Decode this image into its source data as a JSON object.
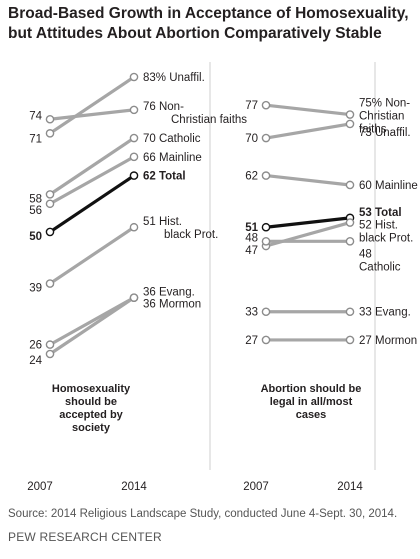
{
  "title_line1": "Broad-Based Growth in Acceptance of Homosexuality,",
  "title_line2": "but Attitudes About Abortion Comparatively Stable",
  "source": "Source: 2014 Religious Landscape Study, conducted June 4-Sept. 30, 2014.",
  "organization": "PEW RESEARCH CENTER",
  "colors": {
    "line": "#a6a6a6",
    "highlight": "#111111",
    "text": "#231f20"
  },
  "chart_data": [
    {
      "type": "line",
      "title": "Homosexuality should be accepted by society",
      "caption_lines": [
        "Homosexuality",
        "should be",
        "accepted by",
        "society"
      ],
      "x": [
        "2007",
        "2014"
      ],
      "ylim": [
        20,
        90
      ],
      "series": [
        {
          "name": "Unaffil.",
          "label": "83% Unaffil.",
          "start_label": "71",
          "values": [
            71,
            83
          ]
        },
        {
          "name": "Non-Christian faiths",
          "label": "76 Non- Christian faiths",
          "label_lines": [
            "Non-",
            "Christian faiths"
          ],
          "start_label": "74",
          "values": [
            74,
            76
          ]
        },
        {
          "name": "Catholic",
          "label": "70 Catholic",
          "start_label": "58",
          "values": [
            58,
            70
          ]
        },
        {
          "name": "Mainline",
          "label": "66 Mainline",
          "start_label": "56",
          "values": [
            56,
            66
          ]
        },
        {
          "name": "Total",
          "label": "62 Total",
          "start_label": "50",
          "values": [
            50,
            62
          ],
          "highlight": true
        },
        {
          "name": "Hist. black Prot.",
          "label": "51 Hist. black Prot.",
          "label_lines": [
            "Hist.",
            "black Prot."
          ],
          "start_label": "39",
          "values": [
            39,
            51
          ]
        },
        {
          "name": "Evang.",
          "label": "36 Evang.",
          "start_label": "26",
          "values": [
            26,
            36
          ]
        },
        {
          "name": "Mormon",
          "label": "36 Mormon",
          "start_label": "24",
          "values": [
            24,
            36
          ]
        }
      ]
    },
    {
      "type": "line",
      "title": "Abortion should be legal in all/most cases",
      "caption_lines": [
        "Abortion should be",
        "legal in all/most",
        "cases"
      ],
      "x": [
        "2007",
        "2014"
      ],
      "ylim": [
        20,
        90
      ],
      "series": [
        {
          "name": "Non-Christian faiths",
          "label": "75% Non-Christian faiths",
          "label_lines": [
            "75% Non-",
            "Christian",
            "faiths"
          ],
          "start_label": "77",
          "values": [
            77,
            75
          ]
        },
        {
          "name": "Unaffil.",
          "label": "73 Unaffil.",
          "start_label": "70",
          "values": [
            70,
            73
          ]
        },
        {
          "name": "Mainline",
          "label": "60 Mainline",
          "start_label": "62",
          "values": [
            62,
            60
          ]
        },
        {
          "name": "Total",
          "label": "53 Total",
          "start_label": "51",
          "values": [
            51,
            53
          ],
          "highlight": true
        },
        {
          "name": "Hist. black Prot.",
          "label": "52 Hist. black Prot.",
          "label_lines": [
            "52 Hist.",
            "black Prot."
          ],
          "start_label": "47",
          "values": [
            47,
            52
          ]
        },
        {
          "name": "Catholic",
          "label": "48 Catholic",
          "label_lines": [
            "48",
            "Catholic"
          ],
          "start_label": "48",
          "values": [
            48,
            48
          ]
        },
        {
          "name": "Evang.",
          "label": "33 Evang.",
          "start_label": "33",
          "values": [
            33,
            33
          ]
        },
        {
          "name": "Mormon",
          "label": "27 Mormon",
          "start_label": "27",
          "values": [
            27,
            27
          ]
        }
      ]
    }
  ]
}
